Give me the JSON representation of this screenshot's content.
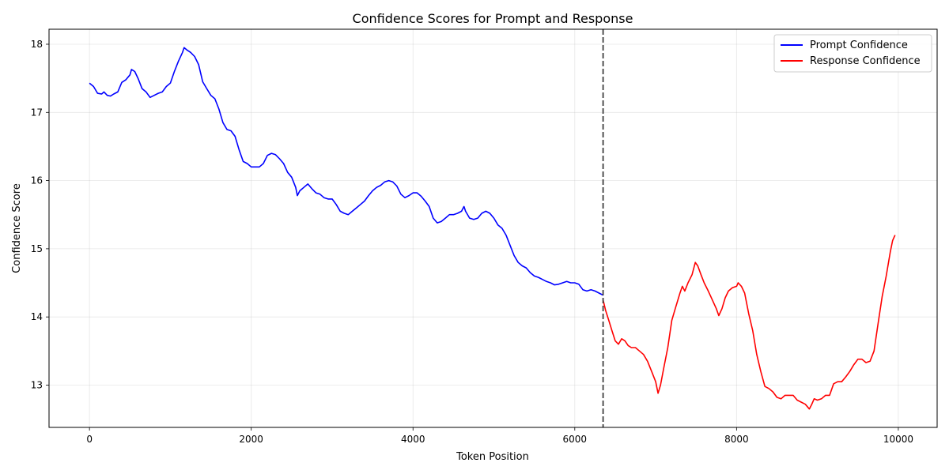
{
  "chart_data": {
    "type": "line",
    "title": "Confidence Scores for Prompt and Response",
    "xlabel": "Token Position",
    "ylabel": "Confidence Score",
    "xlim": [
      -500,
      10480
    ],
    "ylim": [
      12.38,
      18.22
    ],
    "x_ticks": [
      0,
      2000,
      4000,
      6000,
      8000,
      10000
    ],
    "y_ticks": [
      13,
      14,
      15,
      16,
      17,
      18
    ],
    "grid": true,
    "legend_position": "top-right",
    "divider_x": 6350,
    "series": [
      {
        "name": "Prompt Confidence",
        "color": "#0000ff",
        "points": [
          [
            0,
            17.43
          ],
          [
            50,
            17.38
          ],
          [
            100,
            17.28
          ],
          [
            150,
            17.27
          ],
          [
            180,
            17.3
          ],
          [
            220,
            17.25
          ],
          [
            260,
            17.24
          ],
          [
            300,
            17.27
          ],
          [
            350,
            17.3
          ],
          [
            400,
            17.44
          ],
          [
            450,
            17.48
          ],
          [
            500,
            17.55
          ],
          [
            520,
            17.63
          ],
          [
            560,
            17.6
          ],
          [
            600,
            17.5
          ],
          [
            650,
            17.35
          ],
          [
            700,
            17.3
          ],
          [
            750,
            17.22
          ],
          [
            800,
            17.25
          ],
          [
            850,
            17.28
          ],
          [
            900,
            17.3
          ],
          [
            950,
            17.38
          ],
          [
            1000,
            17.43
          ],
          [
            1050,
            17.6
          ],
          [
            1100,
            17.75
          ],
          [
            1150,
            17.88
          ],
          [
            1170,
            17.95
          ],
          [
            1200,
            17.92
          ],
          [
            1250,
            17.88
          ],
          [
            1300,
            17.82
          ],
          [
            1350,
            17.7
          ],
          [
            1400,
            17.45
          ],
          [
            1450,
            17.35
          ],
          [
            1500,
            17.25
          ],
          [
            1550,
            17.2
          ],
          [
            1600,
            17.05
          ],
          [
            1650,
            16.85
          ],
          [
            1700,
            16.75
          ],
          [
            1750,
            16.73
          ],
          [
            1800,
            16.65
          ],
          [
            1850,
            16.45
          ],
          [
            1900,
            16.28
          ],
          [
            1950,
            16.25
          ],
          [
            2000,
            16.2
          ],
          [
            2050,
            16.2
          ],
          [
            2100,
            16.2
          ],
          [
            2150,
            16.25
          ],
          [
            2200,
            16.37
          ],
          [
            2250,
            16.4
          ],
          [
            2300,
            16.38
          ],
          [
            2350,
            16.32
          ],
          [
            2400,
            16.25
          ],
          [
            2450,
            16.12
          ],
          [
            2500,
            16.05
          ],
          [
            2550,
            15.9
          ],
          [
            2570,
            15.78
          ],
          [
            2600,
            15.85
          ],
          [
            2650,
            15.9
          ],
          [
            2700,
            15.95
          ],
          [
            2750,
            15.88
          ],
          [
            2800,
            15.82
          ],
          [
            2850,
            15.8
          ],
          [
            2900,
            15.75
          ],
          [
            2950,
            15.73
          ],
          [
            3000,
            15.73
          ],
          [
            3050,
            15.65
          ],
          [
            3100,
            15.55
          ],
          [
            3150,
            15.52
          ],
          [
            3200,
            15.5
          ],
          [
            3250,
            15.55
          ],
          [
            3300,
            15.6
          ],
          [
            3350,
            15.65
          ],
          [
            3400,
            15.7
          ],
          [
            3450,
            15.78
          ],
          [
            3500,
            15.85
          ],
          [
            3550,
            15.9
          ],
          [
            3600,
            15.93
          ],
          [
            3650,
            15.98
          ],
          [
            3700,
            16.0
          ],
          [
            3750,
            15.98
          ],
          [
            3800,
            15.92
          ],
          [
            3850,
            15.8
          ],
          [
            3900,
            15.75
          ],
          [
            3950,
            15.78
          ],
          [
            4000,
            15.82
          ],
          [
            4050,
            15.82
          ],
          [
            4100,
            15.77
          ],
          [
            4150,
            15.7
          ],
          [
            4200,
            15.62
          ],
          [
            4250,
            15.45
          ],
          [
            4300,
            15.38
          ],
          [
            4350,
            15.4
          ],
          [
            4400,
            15.45
          ],
          [
            4450,
            15.5
          ],
          [
            4500,
            15.5
          ],
          [
            4550,
            15.52
          ],
          [
            4600,
            15.55
          ],
          [
            4630,
            15.62
          ],
          [
            4650,
            15.55
          ],
          [
            4700,
            15.45
          ],
          [
            4750,
            15.43
          ],
          [
            4800,
            15.45
          ],
          [
            4850,
            15.52
          ],
          [
            4900,
            15.55
          ],
          [
            4950,
            15.52
          ],
          [
            5000,
            15.45
          ],
          [
            5050,
            15.35
          ],
          [
            5100,
            15.3
          ],
          [
            5150,
            15.2
          ],
          [
            5200,
            15.05
          ],
          [
            5250,
            14.9
          ],
          [
            5300,
            14.8
          ],
          [
            5350,
            14.75
          ],
          [
            5400,
            14.72
          ],
          [
            5450,
            14.65
          ],
          [
            5500,
            14.6
          ],
          [
            5550,
            14.58
          ],
          [
            5600,
            14.55
          ],
          [
            5650,
            14.52
          ],
          [
            5700,
            14.5
          ],
          [
            5750,
            14.47
          ],
          [
            5800,
            14.48
          ],
          [
            5850,
            14.5
          ],
          [
            5900,
            14.52
          ],
          [
            5950,
            14.5
          ],
          [
            6000,
            14.5
          ],
          [
            6050,
            14.48
          ],
          [
            6100,
            14.4
          ],
          [
            6150,
            14.38
          ],
          [
            6200,
            14.4
          ],
          [
            6250,
            14.38
          ],
          [
            6300,
            14.35
          ],
          [
            6350,
            14.32
          ]
        ]
      },
      {
        "name": "Response Confidence",
        "color": "#ff0000",
        "points": [
          [
            6350,
            14.25
          ],
          [
            6380,
            14.1
          ],
          [
            6420,
            13.95
          ],
          [
            6460,
            13.8
          ],
          [
            6500,
            13.65
          ],
          [
            6540,
            13.6
          ],
          [
            6580,
            13.68
          ],
          [
            6620,
            13.65
          ],
          [
            6660,
            13.58
          ],
          [
            6700,
            13.55
          ],
          [
            6750,
            13.55
          ],
          [
            6800,
            13.5
          ],
          [
            6850,
            13.45
          ],
          [
            6900,
            13.35
          ],
          [
            6950,
            13.2
          ],
          [
            7000,
            13.05
          ],
          [
            7030,
            12.88
          ],
          [
            7060,
            13.0
          ],
          [
            7100,
            13.25
          ],
          [
            7150,
            13.55
          ],
          [
            7200,
            13.95
          ],
          [
            7250,
            14.15
          ],
          [
            7300,
            14.35
          ],
          [
            7330,
            14.45
          ],
          [
            7360,
            14.38
          ],
          [
            7400,
            14.5
          ],
          [
            7450,
            14.62
          ],
          [
            7490,
            14.8
          ],
          [
            7520,
            14.75
          ],
          [
            7560,
            14.62
          ],
          [
            7600,
            14.5
          ],
          [
            7650,
            14.38
          ],
          [
            7700,
            14.25
          ],
          [
            7750,
            14.12
          ],
          [
            7780,
            14.02
          ],
          [
            7820,
            14.12
          ],
          [
            7860,
            14.28
          ],
          [
            7900,
            14.38
          ],
          [
            7950,
            14.43
          ],
          [
            8000,
            14.45
          ],
          [
            8020,
            14.5
          ],
          [
            8060,
            14.45
          ],
          [
            8100,
            14.35
          ],
          [
            8150,
            14.05
          ],
          [
            8200,
            13.8
          ],
          [
            8250,
            13.45
          ],
          [
            8300,
            13.2
          ],
          [
            8350,
            12.98
          ],
          [
            8400,
            12.95
          ],
          [
            8450,
            12.9
          ],
          [
            8500,
            12.82
          ],
          [
            8550,
            12.8
          ],
          [
            8600,
            12.85
          ],
          [
            8650,
            12.85
          ],
          [
            8700,
            12.85
          ],
          [
            8750,
            12.78
          ],
          [
            8800,
            12.75
          ],
          [
            8850,
            12.72
          ],
          [
            8900,
            12.65
          ],
          [
            8930,
            12.72
          ],
          [
            8960,
            12.8
          ],
          [
            9000,
            12.78
          ],
          [
            9050,
            12.8
          ],
          [
            9100,
            12.85
          ],
          [
            9150,
            12.85
          ],
          [
            9200,
            13.02
          ],
          [
            9250,
            13.05
          ],
          [
            9300,
            13.05
          ],
          [
            9350,
            13.12
          ],
          [
            9400,
            13.2
          ],
          [
            9450,
            13.3
          ],
          [
            9500,
            13.38
          ],
          [
            9550,
            13.38
          ],
          [
            9600,
            13.33
          ],
          [
            9650,
            13.35
          ],
          [
            9700,
            13.5
          ],
          [
            9750,
            13.9
          ],
          [
            9800,
            14.3
          ],
          [
            9850,
            14.6
          ],
          [
            9900,
            14.95
          ],
          [
            9930,
            15.12
          ],
          [
            9960,
            15.2
          ]
        ]
      }
    ]
  }
}
